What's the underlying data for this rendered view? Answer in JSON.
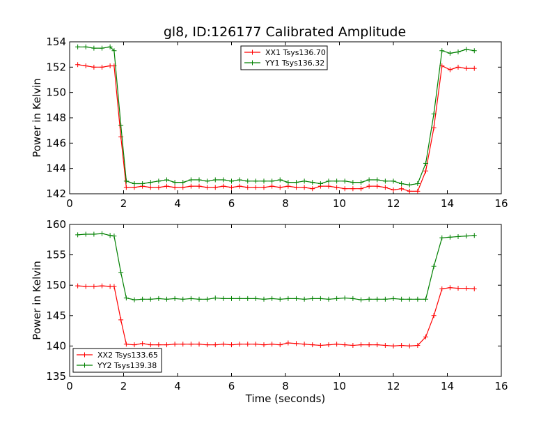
{
  "figure": {
    "title": "gl8, ID:126177 Calibrated Amplitude"
  },
  "chart_data": [
    {
      "type": "line",
      "title": "gl8, ID:126177 Calibrated Amplitude",
      "xlabel": "",
      "ylabel": "Power in Kelvin",
      "xlim": [
        0,
        16
      ],
      "ylim": [
        142,
        154
      ],
      "xticks": [
        0,
        2,
        4,
        6,
        8,
        10,
        12,
        14,
        16
      ],
      "yticks": [
        142,
        144,
        146,
        148,
        150,
        152,
        154
      ],
      "legend_position": "top-center",
      "x": [
        0.3,
        0.6,
        0.9,
        1.2,
        1.5,
        1.65,
        1.9,
        2.1,
        2.4,
        2.7,
        3.0,
        3.3,
        3.6,
        3.9,
        4.2,
        4.5,
        4.8,
        5.1,
        5.4,
        5.7,
        6.0,
        6.3,
        6.6,
        6.9,
        7.2,
        7.5,
        7.8,
        8.1,
        8.4,
        8.7,
        9.0,
        9.3,
        9.6,
        9.9,
        10.2,
        10.5,
        10.8,
        11.1,
        11.4,
        11.7,
        12.0,
        12.3,
        12.6,
        12.9,
        13.2,
        13.5,
        13.8,
        14.1,
        14.4,
        14.7,
        15.0
      ],
      "series": [
        {
          "name": "XX1 Tsys136.70",
          "color": "#ff0000",
          "values": [
            152.2,
            152.1,
            152.0,
            152.0,
            152.1,
            152.1,
            146.5,
            142.5,
            142.5,
            142.6,
            142.5,
            142.5,
            142.6,
            142.5,
            142.5,
            142.6,
            142.6,
            142.5,
            142.5,
            142.6,
            142.5,
            142.6,
            142.5,
            142.5,
            142.5,
            142.6,
            142.5,
            142.6,
            142.5,
            142.5,
            142.4,
            142.6,
            142.6,
            142.5,
            142.4,
            142.4,
            142.4,
            142.6,
            142.6,
            142.5,
            142.3,
            142.4,
            142.2,
            142.2,
            143.8,
            147.2,
            152.1,
            151.8,
            152.0,
            151.9,
            151.9
          ]
        },
        {
          "name": "YY1 Tsys136.32",
          "color": "#008000",
          "values": [
            153.6,
            153.6,
            153.5,
            153.5,
            153.6,
            153.3,
            147.4,
            143.0,
            142.8,
            142.8,
            142.9,
            143.0,
            143.1,
            142.9,
            142.9,
            143.1,
            143.1,
            143.0,
            143.1,
            143.1,
            143.0,
            143.1,
            143.0,
            143.0,
            143.0,
            143.0,
            143.1,
            142.9,
            142.9,
            143.0,
            142.9,
            142.8,
            143.0,
            143.0,
            143.0,
            142.9,
            142.9,
            143.1,
            143.1,
            143.0,
            143.0,
            142.8,
            142.7,
            142.8,
            144.4,
            148.3,
            153.3,
            153.1,
            153.2,
            153.4,
            153.3
          ]
        }
      ]
    },
    {
      "type": "line",
      "title": "",
      "xlabel": "Time (seconds)",
      "ylabel": "Power in Kelvin",
      "xlim": [
        0,
        16
      ],
      "ylim": [
        135,
        160
      ],
      "xticks": [
        0,
        2,
        4,
        6,
        8,
        10,
        12,
        14,
        16
      ],
      "yticks": [
        135,
        140,
        145,
        150,
        155,
        160
      ],
      "legend_position": "bottom-left",
      "x": [
        0.3,
        0.6,
        0.9,
        1.2,
        1.5,
        1.65,
        1.9,
        2.1,
        2.4,
        2.7,
        3.0,
        3.3,
        3.6,
        3.9,
        4.2,
        4.5,
        4.8,
        5.1,
        5.4,
        5.7,
        6.0,
        6.3,
        6.6,
        6.9,
        7.2,
        7.5,
        7.8,
        8.1,
        8.4,
        8.7,
        9.0,
        9.3,
        9.6,
        9.9,
        10.2,
        10.5,
        10.8,
        11.1,
        11.4,
        11.7,
        12.0,
        12.3,
        12.6,
        12.9,
        13.2,
        13.5,
        13.8,
        14.1,
        14.4,
        14.7,
        15.0
      ],
      "series": [
        {
          "name": "XX2 Tsys133.65",
          "color": "#ff0000",
          "values": [
            149.9,
            149.8,
            149.8,
            149.9,
            149.8,
            149.8,
            144.3,
            140.3,
            140.2,
            140.4,
            140.2,
            140.2,
            140.2,
            140.3,
            140.3,
            140.3,
            140.3,
            140.2,
            140.2,
            140.3,
            140.2,
            140.3,
            140.3,
            140.3,
            140.2,
            140.3,
            140.2,
            140.5,
            140.4,
            140.3,
            140.2,
            140.1,
            140.2,
            140.3,
            140.2,
            140.1,
            140.2,
            140.2,
            140.2,
            140.1,
            140.0,
            140.1,
            140.0,
            140.1,
            141.5,
            145.0,
            149.4,
            149.6,
            149.5,
            149.5,
            149.4
          ]
        },
        {
          "name": "YY2 Tsys139.38",
          "color": "#008000",
          "values": [
            158.3,
            158.4,
            158.4,
            158.5,
            158.2,
            158.1,
            152.1,
            147.9,
            147.6,
            147.7,
            147.7,
            147.8,
            147.7,
            147.8,
            147.7,
            147.8,
            147.7,
            147.7,
            147.9,
            147.8,
            147.8,
            147.8,
            147.8,
            147.8,
            147.7,
            147.8,
            147.7,
            147.8,
            147.8,
            147.7,
            147.8,
            147.8,
            147.7,
            147.8,
            147.9,
            147.8,
            147.6,
            147.7,
            147.7,
            147.7,
            147.8,
            147.7,
            147.7,
            147.7,
            147.7,
            153.1,
            157.8,
            157.9,
            158.0,
            158.1,
            158.2
          ]
        }
      ]
    }
  ]
}
